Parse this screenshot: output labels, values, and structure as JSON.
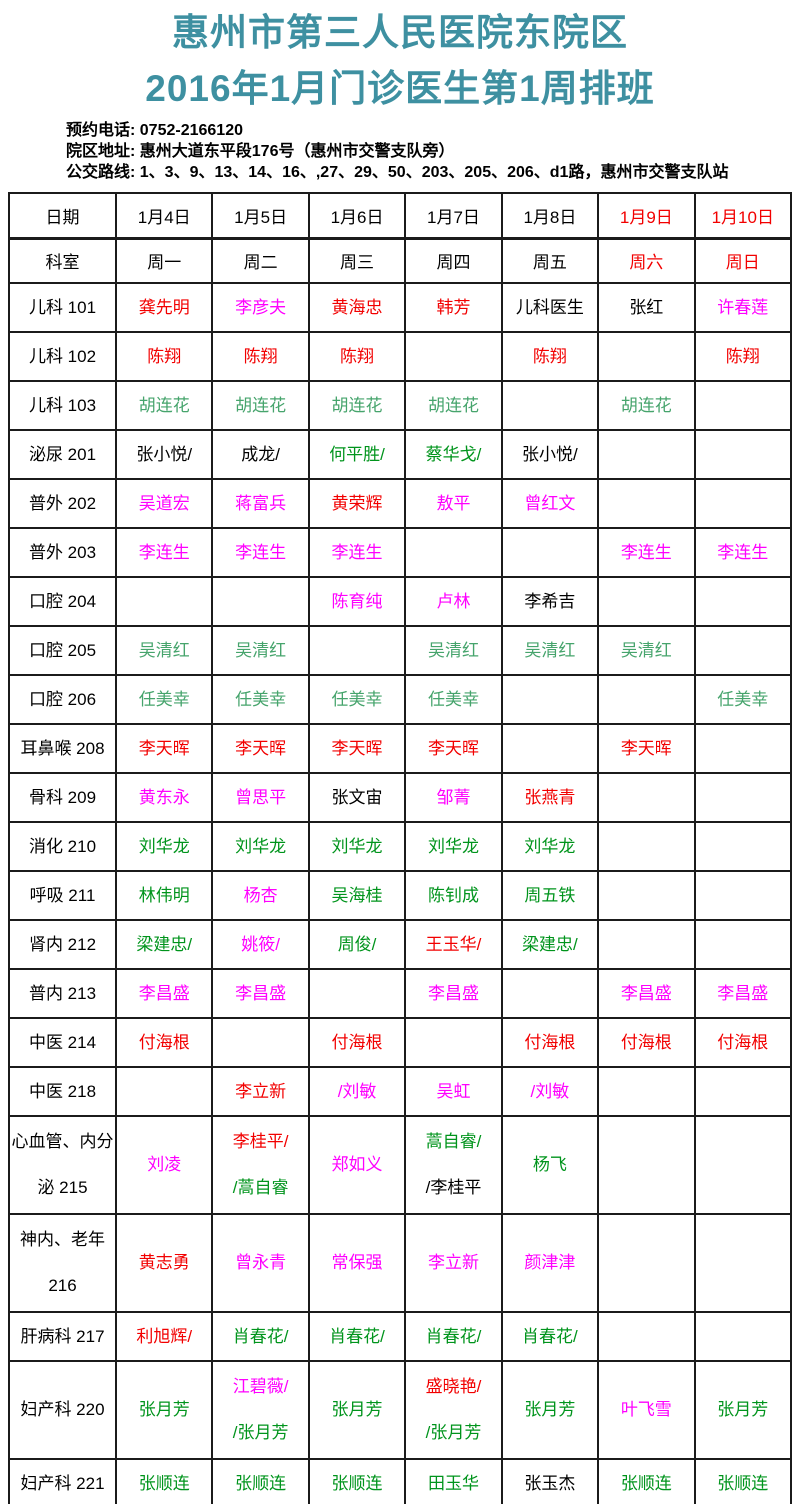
{
  "page": {
    "title_line1": "惠州市第三人民医院东院区",
    "title_line2": "2016年1月门诊医生第1周排班",
    "info_lines": [
      "预约电话: 0752-2166120",
      "院区地址: 惠州大道东平段176号（惠州市交警支队旁）",
      "公交路线: 1、3、9、13、14、16、,27、29、50、203、205、206、d1路，惠州市交警支队站"
    ]
  },
  "colors": {
    "title": "#3e90a1",
    "red": "#f20000",
    "magenta": "#ff00ff",
    "green": "#00941c",
    "seagreen": "#46a46c",
    "black": "#000000"
  },
  "table": {
    "header_rows": [
      {
        "cells": [
          {
            "text": "日期",
            "color": "black"
          },
          {
            "text": "1月4日",
            "color": "black"
          },
          {
            "text": "1月5日",
            "color": "black"
          },
          {
            "text": "1月6日",
            "color": "black"
          },
          {
            "text": "1月7日",
            "color": "black"
          },
          {
            "text": "1月8日",
            "color": "black"
          },
          {
            "text": "1月9日",
            "color": "red"
          },
          {
            "text": "1月10日",
            "color": "red"
          }
        ]
      },
      {
        "cells": [
          {
            "text": "科室",
            "color": "black"
          },
          {
            "text": "周一",
            "color": "black"
          },
          {
            "text": "周二",
            "color": "black"
          },
          {
            "text": "周三",
            "color": "black"
          },
          {
            "text": "周四",
            "color": "black"
          },
          {
            "text": "周五",
            "color": "black"
          },
          {
            "text": "周六",
            "color": "red"
          },
          {
            "text": "周日",
            "color": "red"
          }
        ]
      }
    ],
    "rows": [
      {
        "label_lines": [
          "儿科 101"
        ],
        "tall": false,
        "cells": [
          [
            {
              "text": "龚先明",
              "color": "red"
            }
          ],
          [
            {
              "text": "李彦夫",
              "color": "magenta"
            }
          ],
          [
            {
              "text": "黄海忠",
              "color": "red"
            }
          ],
          [
            {
              "text": "韩芳",
              "color": "red"
            }
          ],
          [
            {
              "text": "儿科医生",
              "color": "black"
            }
          ],
          [
            {
              "text": "张红",
              "color": "black"
            }
          ],
          [
            {
              "text": "许春莲",
              "color": "magenta"
            }
          ]
        ]
      },
      {
        "label_lines": [
          "儿科 102"
        ],
        "tall": false,
        "cells": [
          [
            {
              "text": "陈翔",
              "color": "red"
            }
          ],
          [
            {
              "text": "陈翔",
              "color": "red"
            }
          ],
          [
            {
              "text": "陈翔",
              "color": "red"
            }
          ],
          [],
          [
            {
              "text": "陈翔",
              "color": "red"
            }
          ],
          [],
          [
            {
              "text": "陈翔",
              "color": "red"
            }
          ]
        ]
      },
      {
        "label_lines": [
          "儿科 103"
        ],
        "tall": false,
        "cells": [
          [
            {
              "text": "胡连花",
              "color": "seagreen"
            }
          ],
          [
            {
              "text": "胡连花",
              "color": "seagreen"
            }
          ],
          [
            {
              "text": "胡连花",
              "color": "seagreen"
            }
          ],
          [
            {
              "text": "胡连花",
              "color": "seagreen"
            }
          ],
          [],
          [
            {
              "text": "胡连花",
              "color": "seagreen"
            }
          ],
          []
        ]
      },
      {
        "label_lines": [
          "泌尿 201"
        ],
        "tall": false,
        "cells": [
          [
            {
              "text": "张小悦/",
              "color": "black"
            }
          ],
          [
            {
              "text": "成龙/",
              "color": "black"
            }
          ],
          [
            {
              "text": "何平胜/",
              "color": "green"
            }
          ],
          [
            {
              "text": "蔡华戈/",
              "color": "green"
            }
          ],
          [
            {
              "text": "张小悦/",
              "color": "black"
            }
          ],
          [],
          []
        ]
      },
      {
        "label_lines": [
          "普外 202"
        ],
        "tall": false,
        "cells": [
          [
            {
              "text": "吴道宏",
              "color": "magenta"
            }
          ],
          [
            {
              "text": "蒋富兵",
              "color": "magenta"
            }
          ],
          [
            {
              "text": "黄荣辉",
              "color": "red"
            }
          ],
          [
            {
              "text": "敖平",
              "color": "magenta"
            }
          ],
          [
            {
              "text": "曾红文",
              "color": "magenta"
            }
          ],
          [],
          []
        ]
      },
      {
        "label_lines": [
          "普外 203"
        ],
        "tall": false,
        "cells": [
          [
            {
              "text": "李连生",
              "color": "magenta"
            }
          ],
          [
            {
              "text": "李连生",
              "color": "magenta"
            }
          ],
          [
            {
              "text": "李连生",
              "color": "magenta"
            }
          ],
          [],
          [],
          [
            {
              "text": "李连生",
              "color": "magenta"
            }
          ],
          [
            {
              "text": "李连生",
              "color": "magenta"
            }
          ]
        ]
      },
      {
        "label_lines": [
          "口腔 204"
        ],
        "tall": false,
        "cells": [
          [],
          [],
          [
            {
              "text": "陈育纯",
              "color": "magenta"
            }
          ],
          [
            {
              "text": "卢林",
              "color": "magenta"
            }
          ],
          [
            {
              "text": "李希吉",
              "color": "black"
            }
          ],
          [],
          []
        ]
      },
      {
        "label_lines": [
          "口腔 205"
        ],
        "tall": false,
        "cells": [
          [
            {
              "text": "吴清红",
              "color": "seagreen"
            }
          ],
          [
            {
              "text": "吴清红",
              "color": "seagreen"
            }
          ],
          [],
          [
            {
              "text": "吴清红",
              "color": "seagreen"
            }
          ],
          [
            {
              "text": "吴清红",
              "color": "seagreen"
            }
          ],
          [
            {
              "text": "吴清红",
              "color": "seagreen"
            }
          ],
          []
        ]
      },
      {
        "label_lines": [
          "口腔 206"
        ],
        "tall": false,
        "cells": [
          [
            {
              "text": "任美幸",
              "color": "seagreen"
            }
          ],
          [
            {
              "text": "任美幸",
              "color": "seagreen"
            }
          ],
          [
            {
              "text": "任美幸",
              "color": "seagreen"
            }
          ],
          [
            {
              "text": "任美幸",
              "color": "seagreen"
            }
          ],
          [],
          [],
          [
            {
              "text": "任美幸",
              "color": "seagreen"
            }
          ]
        ]
      },
      {
        "label_lines": [
          "耳鼻喉 208"
        ],
        "tall": false,
        "cells": [
          [
            {
              "text": "李天晖",
              "color": "red"
            }
          ],
          [
            {
              "text": "李天晖",
              "color": "red"
            }
          ],
          [
            {
              "text": "李天晖",
              "color": "red"
            }
          ],
          [
            {
              "text": "李天晖",
              "color": "red"
            }
          ],
          [],
          [
            {
              "text": "李天晖",
              "color": "red"
            }
          ],
          []
        ]
      },
      {
        "label_lines": [
          "骨科 209"
        ],
        "tall": false,
        "cells": [
          [
            {
              "text": "黄东永",
              "color": "magenta"
            }
          ],
          [
            {
              "text": "曾思平",
              "color": "magenta"
            }
          ],
          [
            {
              "text": "张文宙",
              "color": "black"
            }
          ],
          [
            {
              "text": "邹菁",
              "color": "magenta"
            }
          ],
          [
            {
              "text": "张燕青",
              "color": "red"
            }
          ],
          [],
          []
        ]
      },
      {
        "label_lines": [
          "消化 210"
        ],
        "tall": false,
        "cells": [
          [
            {
              "text": "刘华龙",
              "color": "green"
            }
          ],
          [
            {
              "text": "刘华龙",
              "color": "green"
            }
          ],
          [
            {
              "text": "刘华龙",
              "color": "green"
            }
          ],
          [
            {
              "text": "刘华龙",
              "color": "green"
            }
          ],
          [
            {
              "text": "刘华龙",
              "color": "green"
            }
          ],
          [],
          []
        ]
      },
      {
        "label_lines": [
          "呼吸 211"
        ],
        "tall": false,
        "cells": [
          [
            {
              "text": "林伟明",
              "color": "green"
            }
          ],
          [
            {
              "text": "杨杏",
              "color": "magenta"
            }
          ],
          [
            {
              "text": "吴海桂",
              "color": "green"
            }
          ],
          [
            {
              "text": "陈钊成",
              "color": "green"
            }
          ],
          [
            {
              "text": "周五铁",
              "color": "green"
            }
          ],
          [],
          []
        ]
      },
      {
        "label_lines": [
          "肾内 212"
        ],
        "tall": false,
        "cells": [
          [
            {
              "text": "梁建忠/",
              "color": "green"
            }
          ],
          [
            {
              "text": "姚筱/",
              "color": "magenta"
            }
          ],
          [
            {
              "text": "周俊/",
              "color": "green"
            }
          ],
          [
            {
              "text": "王玉华/",
              "color": "red"
            }
          ],
          [
            {
              "text": "梁建忠/",
              "color": "green"
            }
          ],
          [],
          []
        ]
      },
      {
        "label_lines": [
          "普内 213"
        ],
        "tall": false,
        "cells": [
          [
            {
              "text": "李昌盛",
              "color": "magenta"
            }
          ],
          [
            {
              "text": "李昌盛",
              "color": "magenta"
            }
          ],
          [],
          [
            {
              "text": "李昌盛",
              "color": "magenta"
            }
          ],
          [],
          [
            {
              "text": "李昌盛",
              "color": "magenta"
            }
          ],
          [
            {
              "text": "李昌盛",
              "color": "magenta"
            }
          ]
        ]
      },
      {
        "label_lines": [
          "中医 214"
        ],
        "tall": false,
        "cells": [
          [
            {
              "text": "付海根",
              "color": "red"
            }
          ],
          [],
          [
            {
              "text": "付海根",
              "color": "red"
            }
          ],
          [],
          [
            {
              "text": "付海根",
              "color": "red"
            }
          ],
          [
            {
              "text": "付海根",
              "color": "red"
            }
          ],
          [
            {
              "text": "付海根",
              "color": "red"
            }
          ]
        ]
      },
      {
        "label_lines": [
          "中医 218"
        ],
        "tall": false,
        "cells": [
          [],
          [
            {
              "text": "李立新",
              "color": "red"
            }
          ],
          [
            {
              "text": "/刘敏",
              "color": "magenta"
            }
          ],
          [
            {
              "text": "吴虹",
              "color": "magenta"
            }
          ],
          [
            {
              "text": "/刘敏",
              "color": "magenta"
            }
          ],
          [],
          []
        ]
      },
      {
        "label_lines": [
          "心血管、内分",
          "泌 215"
        ],
        "tall": true,
        "cells": [
          [
            {
              "text": "刘凌",
              "color": "magenta"
            }
          ],
          [
            {
              "text": "李桂平/",
              "color": "red"
            },
            {
              "text": "/蒿自睿",
              "color": "green"
            }
          ],
          [
            {
              "text": "郑如义",
              "color": "magenta"
            }
          ],
          [
            {
              "text": "蒿自睿/",
              "color": "green"
            },
            {
              "text": "/李桂平",
              "color": "black"
            }
          ],
          [
            {
              "text": "杨飞",
              "color": "green"
            }
          ],
          [],
          []
        ]
      },
      {
        "label_lines": [
          "神内、老年",
          "216"
        ],
        "tall": true,
        "cells": [
          [
            {
              "text": "黄志勇",
              "color": "red"
            }
          ],
          [
            {
              "text": "曾永青",
              "color": "magenta"
            }
          ],
          [
            {
              "text": "常保强",
              "color": "magenta"
            }
          ],
          [
            {
              "text": "李立新",
              "color": "magenta"
            }
          ],
          [
            {
              "text": "颜津津",
              "color": "magenta"
            }
          ],
          [],
          []
        ]
      },
      {
        "label_lines": [
          "肝病科 217"
        ],
        "tall": false,
        "cells": [
          [
            {
              "text": "利旭辉/",
              "color": "red"
            }
          ],
          [
            {
              "text": "肖春花/",
              "color": "green"
            }
          ],
          [
            {
              "text": "肖春花/",
              "color": "green"
            }
          ],
          [
            {
              "text": "肖春花/",
              "color": "green"
            }
          ],
          [
            {
              "text": "肖春花/",
              "color": "green"
            }
          ],
          [],
          []
        ]
      },
      {
        "label_lines": [
          "妇产科 220"
        ],
        "tall": true,
        "cells": [
          [
            {
              "text": "张月芳",
              "color": "green"
            }
          ],
          [
            {
              "text": "江碧薇/",
              "color": "magenta"
            },
            {
              "text": "/张月芳",
              "color": "green"
            }
          ],
          [
            {
              "text": "张月芳",
              "color": "green"
            }
          ],
          [
            {
              "text": "盛晓艳/",
              "color": "red"
            },
            {
              "text": "/张月芳",
              "color": "green"
            }
          ],
          [
            {
              "text": "张月芳",
              "color": "green"
            }
          ],
          [
            {
              "text": "叶飞雪",
              "color": "magenta"
            }
          ],
          [
            {
              "text": "张月芳",
              "color": "green"
            }
          ]
        ]
      },
      {
        "label_lines": [
          "妇产科 221"
        ],
        "tall": false,
        "cells": [
          [
            {
              "text": "张顺连",
              "color": "green"
            }
          ],
          [
            {
              "text": "张顺连",
              "color": "green"
            }
          ],
          [
            {
              "text": "张顺连",
              "color": "green"
            }
          ],
          [
            {
              "text": "田玉华",
              "color": "green"
            }
          ],
          [
            {
              "text": "张玉杰",
              "color": "black"
            }
          ],
          [
            {
              "text": "张顺连",
              "color": "green"
            }
          ],
          [
            {
              "text": "张顺连",
              "color": "green"
            }
          ]
        ]
      }
    ]
  }
}
